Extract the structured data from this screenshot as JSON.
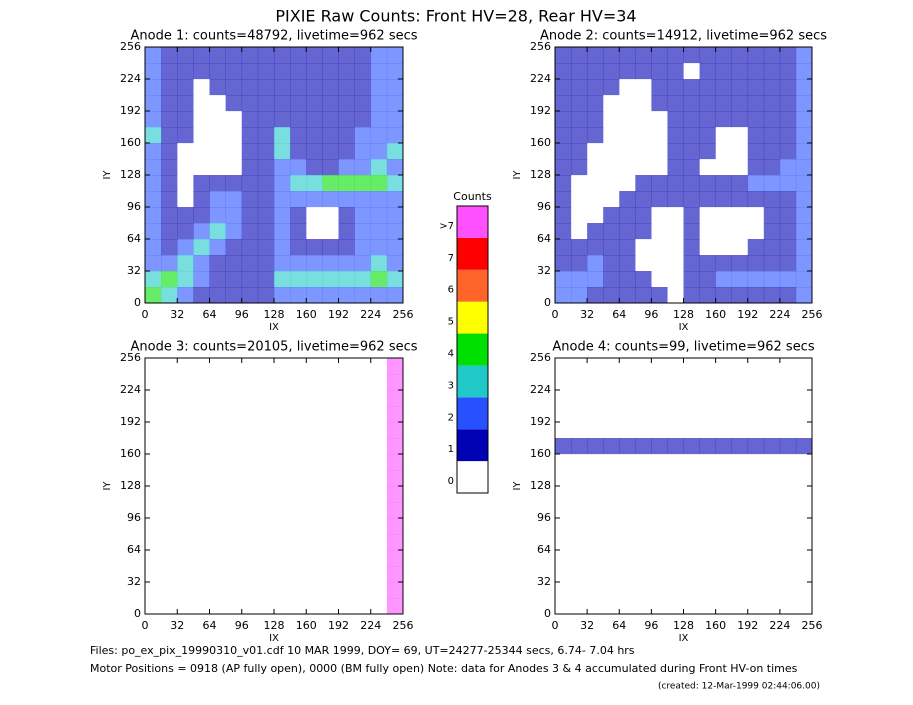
{
  "title": "PIXIE Raw Counts:  Front HV=28, Rear HV=34",
  "colorbar": {
    "title": "Counts",
    "labels": [
      "0",
      "1",
      "2",
      "3",
      "4",
      "5",
      "6",
      "7",
      ">7"
    ],
    "colors": [
      "#ffffff",
      "#0000b4",
      "#2850ff",
      "#20c8c8",
      "#00e000",
      "#ffff00",
      "#ff6428",
      "#ff0000",
      "#ff50ff"
    ]
  },
  "panels": [
    {
      "title": "Anode 1: counts=48792, livetime=962 secs",
      "xlabel": "IX",
      "ylabel": "IY",
      "xlim": [
        0,
        256
      ],
      "ylim": [
        0,
        256
      ],
      "xticks": [
        0,
        32,
        64,
        96,
        128,
        160,
        192,
        224,
        256
      ],
      "yticks": [
        0,
        32,
        64,
        96,
        128,
        160,
        192,
        224,
        256
      ],
      "cells": [
        [
          2,
          1,
          1,
          1,
          1,
          1,
          1,
          1,
          1,
          1,
          1,
          1,
          1,
          1,
          2,
          2
        ],
        [
          2,
          1,
          1,
          1,
          1,
          1,
          1,
          1,
          1,
          1,
          1,
          1,
          1,
          1,
          2,
          2
        ],
        [
          2,
          1,
          1,
          0,
          1,
          1,
          1,
          1,
          1,
          1,
          1,
          1,
          1,
          1,
          2,
          2
        ],
        [
          2,
          1,
          1,
          0,
          0,
          1,
          1,
          1,
          1,
          1,
          1,
          1,
          1,
          1,
          2,
          2
        ],
        [
          2,
          1,
          1,
          0,
          0,
          0,
          1,
          1,
          1,
          1,
          1,
          1,
          1,
          1,
          2,
          2
        ],
        [
          3,
          1,
          1,
          0,
          0,
          0,
          1,
          1,
          3,
          1,
          1,
          1,
          1,
          2,
          2,
          2
        ],
        [
          2,
          1,
          0,
          0,
          0,
          0,
          1,
          1,
          3,
          1,
          1,
          1,
          1,
          2,
          2,
          3
        ],
        [
          2,
          1,
          0,
          0,
          0,
          0,
          1,
          1,
          2,
          2,
          1,
          1,
          2,
          2,
          3,
          2
        ],
        [
          2,
          1,
          0,
          1,
          1,
          1,
          1,
          1,
          2,
          3,
          3,
          4,
          4,
          4,
          4,
          3
        ],
        [
          2,
          1,
          0,
          1,
          2,
          2,
          1,
          1,
          2,
          2,
          2,
          2,
          2,
          2,
          2,
          2
        ],
        [
          2,
          1,
          1,
          1,
          2,
          2,
          1,
          1,
          2,
          1,
          0,
          0,
          1,
          2,
          2,
          2
        ],
        [
          2,
          1,
          1,
          2,
          3,
          2,
          1,
          1,
          2,
          1,
          0,
          0,
          1,
          2,
          2,
          2
        ],
        [
          2,
          1,
          2,
          3,
          2,
          1,
          1,
          1,
          2,
          1,
          1,
          1,
          1,
          2,
          2,
          2
        ],
        [
          2,
          2,
          3,
          2,
          1,
          1,
          1,
          1,
          2,
          2,
          2,
          2,
          2,
          2,
          3,
          2
        ],
        [
          3,
          4,
          3,
          2,
          1,
          1,
          1,
          1,
          3,
          3,
          3,
          3,
          3,
          3,
          4,
          3
        ],
        [
          4,
          3,
          2,
          1,
          1,
          1,
          1,
          1,
          2,
          2,
          2,
          2,
          2,
          2,
          2,
          2
        ]
      ]
    },
    {
      "title": "Anode 2: counts=14912, livetime=962 secs",
      "xlabel": "IX",
      "ylabel": "IY",
      "xlim": [
        0,
        256
      ],
      "ylim": [
        0,
        256
      ],
      "xticks": [
        0,
        32,
        64,
        96,
        128,
        160,
        192,
        224,
        256
      ],
      "yticks": [
        0,
        32,
        64,
        96,
        128,
        160,
        192,
        224,
        256
      ],
      "cells": [
        [
          1,
          1,
          1,
          1,
          1,
          1,
          1,
          1,
          1,
          1,
          1,
          1,
          1,
          1,
          1,
          2
        ],
        [
          1,
          1,
          1,
          1,
          1,
          1,
          1,
          1,
          0,
          1,
          1,
          1,
          1,
          1,
          1,
          2
        ],
        [
          1,
          1,
          1,
          1,
          0,
          0,
          1,
          1,
          1,
          1,
          1,
          1,
          1,
          1,
          1,
          2
        ],
        [
          1,
          1,
          1,
          0,
          0,
          0,
          1,
          1,
          1,
          1,
          1,
          1,
          1,
          1,
          1,
          2
        ],
        [
          1,
          1,
          1,
          0,
          0,
          0,
          0,
          1,
          1,
          1,
          1,
          1,
          1,
          1,
          1,
          2
        ],
        [
          1,
          1,
          1,
          0,
          0,
          0,
          0,
          1,
          1,
          1,
          0,
          0,
          1,
          1,
          1,
          2
        ],
        [
          1,
          1,
          0,
          0,
          0,
          0,
          0,
          1,
          1,
          1,
          0,
          0,
          1,
          1,
          1,
          2
        ],
        [
          1,
          1,
          0,
          0,
          0,
          0,
          0,
          1,
          1,
          0,
          0,
          0,
          1,
          1,
          2,
          2
        ],
        [
          1,
          0,
          0,
          0,
          0,
          1,
          1,
          1,
          1,
          1,
          1,
          1,
          2,
          2,
          2,
          2
        ],
        [
          1,
          0,
          0,
          0,
          1,
          1,
          1,
          1,
          1,
          1,
          1,
          1,
          1,
          1,
          1,
          2
        ],
        [
          1,
          0,
          0,
          1,
          1,
          1,
          0,
          0,
          1,
          0,
          0,
          0,
          0,
          1,
          1,
          2
        ],
        [
          1,
          0,
          1,
          1,
          1,
          1,
          0,
          0,
          1,
          0,
          0,
          0,
          0,
          1,
          1,
          2
        ],
        [
          1,
          1,
          1,
          1,
          1,
          0,
          0,
          0,
          1,
          0,
          0,
          0,
          1,
          1,
          1,
          2
        ],
        [
          1,
          1,
          2,
          1,
          1,
          0,
          0,
          0,
          1,
          1,
          1,
          1,
          1,
          1,
          1,
          2
        ],
        [
          2,
          2,
          2,
          1,
          1,
          1,
          0,
          0,
          1,
          1,
          2,
          2,
          2,
          2,
          2,
          2
        ],
        [
          2,
          2,
          1,
          1,
          1,
          1,
          1,
          0,
          1,
          1,
          1,
          1,
          1,
          1,
          1,
          2
        ]
      ]
    },
    {
      "title": "Anode 3: counts=20105, livetime=962 secs",
      "xlabel": "IX",
      "ylabel": "IY",
      "xlim": [
        0,
        256
      ],
      "ylim": [
        0,
        256
      ],
      "xticks": [
        0,
        32,
        64,
        96,
        128,
        160,
        192,
        224,
        256
      ],
      "yticks": [
        0,
        32,
        64,
        96,
        128,
        160,
        192,
        224,
        256
      ],
      "cells": [
        [
          0,
          0,
          0,
          0,
          0,
          0,
          0,
          0,
          0,
          0,
          0,
          0,
          0,
          0,
          0,
          8
        ],
        [
          0,
          0,
          0,
          0,
          0,
          0,
          0,
          0,
          0,
          0,
          0,
          0,
          0,
          0,
          0,
          8
        ],
        [
          0,
          0,
          0,
          0,
          0,
          0,
          0,
          0,
          0,
          0,
          0,
          0,
          0,
          0,
          0,
          8
        ],
        [
          0,
          0,
          0,
          0,
          0,
          0,
          0,
          0,
          0,
          0,
          0,
          0,
          0,
          0,
          0,
          8
        ],
        [
          0,
          0,
          0,
          0,
          0,
          0,
          0,
          0,
          0,
          0,
          0,
          0,
          0,
          0,
          0,
          8
        ],
        [
          0,
          0,
          0,
          0,
          0,
          0,
          0,
          0,
          0,
          0,
          0,
          0,
          0,
          0,
          0,
          8
        ],
        [
          0,
          0,
          0,
          0,
          0,
          0,
          0,
          0,
          0,
          0,
          0,
          0,
          0,
          0,
          0,
          8
        ],
        [
          0,
          0,
          0,
          0,
          0,
          0,
          0,
          0,
          0,
          0,
          0,
          0,
          0,
          0,
          0,
          8
        ],
        [
          0,
          0,
          0,
          0,
          0,
          0,
          0,
          0,
          0,
          0,
          0,
          0,
          0,
          0,
          0,
          8
        ],
        [
          0,
          0,
          0,
          0,
          0,
          0,
          0,
          0,
          0,
          0,
          0,
          0,
          0,
          0,
          0,
          8
        ],
        [
          0,
          0,
          0,
          0,
          0,
          0,
          0,
          0,
          0,
          0,
          0,
          0,
          0,
          0,
          0,
          8
        ],
        [
          0,
          0,
          0,
          0,
          0,
          0,
          0,
          0,
          0,
          0,
          0,
          0,
          0,
          0,
          0,
          8
        ],
        [
          0,
          0,
          0,
          0,
          0,
          0,
          0,
          0,
          0,
          0,
          0,
          0,
          0,
          0,
          0,
          8
        ],
        [
          0,
          0,
          0,
          0,
          0,
          0,
          0,
          0,
          0,
          0,
          0,
          0,
          0,
          0,
          0,
          8
        ],
        [
          0,
          0,
          0,
          0,
          0,
          0,
          0,
          0,
          0,
          0,
          0,
          0,
          0,
          0,
          0,
          8
        ],
        [
          0,
          0,
          0,
          0,
          0,
          0,
          0,
          0,
          0,
          0,
          0,
          0,
          0,
          0,
          0,
          8
        ]
      ]
    },
    {
      "title": "Anode 4: counts=99, livetime=962 secs",
      "xlabel": "IX",
      "ylabel": "IY",
      "xlim": [
        0,
        256
      ],
      "ylim": [
        0,
        256
      ],
      "xticks": [
        0,
        32,
        64,
        96,
        128,
        160,
        192,
        224,
        256
      ],
      "yticks": [
        0,
        32,
        64,
        96,
        128,
        160,
        192,
        224,
        256
      ],
      "cells": [
        [
          0,
          0,
          0,
          0,
          0,
          0,
          0,
          0,
          0,
          0,
          0,
          0,
          0,
          0,
          0,
          0
        ],
        [
          0,
          0,
          0,
          0,
          0,
          0,
          0,
          0,
          0,
          0,
          0,
          0,
          0,
          0,
          0,
          0
        ],
        [
          0,
          0,
          0,
          0,
          0,
          0,
          0,
          0,
          0,
          0,
          0,
          0,
          0,
          0,
          0,
          0
        ],
        [
          0,
          0,
          0,
          0,
          0,
          0,
          0,
          0,
          0,
          0,
          0,
          0,
          0,
          0,
          0,
          0
        ],
        [
          0,
          0,
          0,
          0,
          0,
          0,
          0,
          0,
          0,
          0,
          0,
          0,
          0,
          0,
          0,
          0
        ],
        [
          1,
          1,
          1,
          1,
          1,
          1,
          1,
          1,
          1,
          1,
          1,
          1,
          1,
          1,
          1,
          1
        ],
        [
          0,
          0,
          0,
          0,
          0,
          0,
          0,
          0,
          0,
          0,
          0,
          0,
          0,
          0,
          0,
          0
        ],
        [
          0,
          0,
          0,
          0,
          0,
          0,
          0,
          0,
          0,
          0,
          0,
          0,
          0,
          0,
          0,
          0
        ],
        [
          0,
          0,
          0,
          0,
          0,
          0,
          0,
          0,
          0,
          0,
          0,
          0,
          0,
          0,
          0,
          0
        ],
        [
          0,
          0,
          0,
          0,
          0,
          0,
          0,
          0,
          0,
          0,
          0,
          0,
          0,
          0,
          0,
          0
        ],
        [
          0,
          0,
          0,
          0,
          0,
          0,
          0,
          0,
          0,
          0,
          0,
          0,
          0,
          0,
          0,
          0
        ],
        [
          0,
          0,
          0,
          0,
          0,
          0,
          0,
          0,
          0,
          0,
          0,
          0,
          0,
          0,
          0,
          0
        ],
        [
          0,
          0,
          0,
          0,
          0,
          0,
          0,
          0,
          0,
          0,
          0,
          0,
          0,
          0,
          0,
          0
        ],
        [
          0,
          0,
          0,
          0,
          0,
          0,
          0,
          0,
          0,
          0,
          0,
          0,
          0,
          0,
          0,
          0
        ],
        [
          0,
          0,
          0,
          0,
          0,
          0,
          0,
          0,
          0,
          0,
          0,
          0,
          0,
          0,
          0,
          0
        ],
        [
          0,
          0,
          0,
          0,
          0,
          0,
          0,
          0,
          0,
          0,
          0,
          0,
          0,
          0,
          0,
          0
        ]
      ]
    }
  ],
  "footer": [
    "Files: po_ex_pix_19990310_v01.cdf    10 MAR 1999, DOY= 69, UT=24277-25344 secs,  6.74- 7.04 hrs",
    "Motor Positions = 0918 (AP fully open), 0000 (BM fully open)    Note: data for Anodes 3 & 4 accumulated during Front HV-on times",
    "(created: 12-Mar-1999 02:44:06.00)"
  ]
}
